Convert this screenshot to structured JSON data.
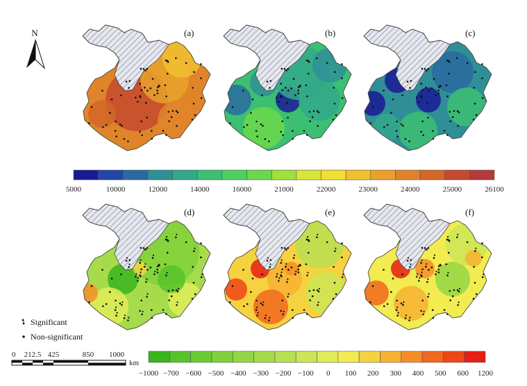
{
  "north_label": "N",
  "panels": [
    {
      "label": "(a)",
      "theme": "high"
    },
    {
      "label": "(b)",
      "theme": "mid"
    },
    {
      "label": "(c)",
      "theme": "low"
    },
    {
      "label": "(d)",
      "theme": "green"
    },
    {
      "label": "(e)",
      "theme": "orange"
    },
    {
      "label": "(f)",
      "theme": "mixed"
    }
  ],
  "colorbar_top": {
    "ticks": [
      "5000",
      "10000",
      "12000",
      "14000",
      "16000",
      "21000",
      "22000",
      "23000",
      "24000",
      "25000",
      "26100"
    ],
    "colors": [
      "#1a1a96",
      "#2146a8",
      "#2a6aa0",
      "#2f8f96",
      "#33a88a",
      "#3cbf72",
      "#4ed060",
      "#6ad84a",
      "#9ee03c",
      "#d6e63a",
      "#f2df35",
      "#f0c030",
      "#e8a22c",
      "#e0842a",
      "#d46628",
      "#c44a2e",
      "#b53a38"
    ]
  },
  "colorbar_bottom": {
    "ticks": [
      "−1000",
      "−700",
      "−600",
      "−500",
      "−400",
      "−300",
      "−200",
      "−100",
      "0",
      "100",
      "200",
      "300",
      "400",
      "500",
      "600",
      "1200"
    ],
    "colors": [
      "#39b51e",
      "#56c32a",
      "#6ccb32",
      "#80d13a",
      "#93d744",
      "#a6dc4c",
      "#b8e152",
      "#cce656",
      "#e0ec58",
      "#f2ec50",
      "#f6d240",
      "#f7b232",
      "#f68e28",
      "#f2681e",
      "#ee4618",
      "#e61e14"
    ]
  },
  "legend": {
    "significant": "Significant",
    "non_significant": "Non-significant"
  },
  "scale_bar": {
    "labels": [
      "0",
      "212.5",
      "425",
      "850",
      "1000"
    ],
    "unit": "km"
  }
}
